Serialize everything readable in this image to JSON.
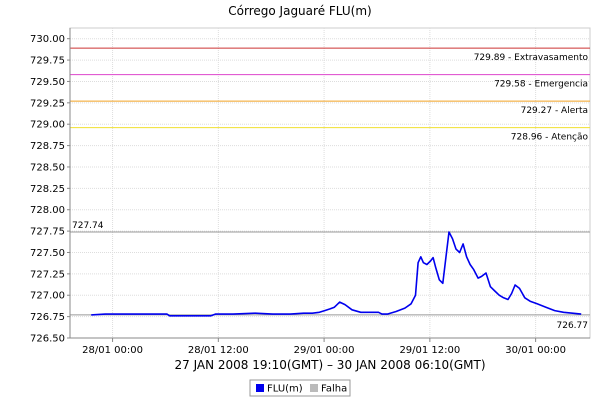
{
  "chart_data": {
    "type": "line",
    "title": "Córrego Jaguaré FLU(m)",
    "xlabel": "27 JAN 2008 19:10(GMT) – 30 JAN 2008 06:10(GMT)",
    "ylabel": "",
    "x_unit": "hours since 27/01 19:10",
    "xlim": [
      0,
      59
    ],
    "ylim": [
      726.5,
      730.125
    ],
    "y_ticks": [
      726.5,
      726.75,
      727.0,
      727.25,
      727.5,
      727.75,
      728.0,
      728.25,
      728.5,
      728.75,
      729.0,
      729.25,
      729.5,
      729.75,
      730.0
    ],
    "y_tick_labels": [
      "726.50",
      "726.75",
      "727.00",
      "727.25",
      "727.50",
      "727.75",
      "728.00",
      "728.25",
      "728.50",
      "728.75",
      "729.00",
      "729.25",
      "729.50",
      "729.75",
      "730.00"
    ],
    "x_ticks": [
      {
        "label": "28/01 00:00",
        "x": 4.83
      },
      {
        "label": "28/01 12:00",
        "x": 16.83
      },
      {
        "label": "29/01 00:00",
        "x": 28.83
      },
      {
        "label": "29/01 12:00",
        "x": 40.83
      },
      {
        "label": "30/01 00:00",
        "x": 52.83
      }
    ],
    "grid": true,
    "legend_position": "bottom",
    "legend": [
      {
        "name": "FLU(m)",
        "color": "#0000ee"
      },
      {
        "name": "Falha",
        "color": "#bbbbbb"
      }
    ],
    "thresholds": [
      {
        "value": 729.89,
        "label": "729.89 - Extravasamento",
        "color": "#cc3333"
      },
      {
        "value": 729.58,
        "label": "729.58 - Emergencia",
        "color": "#dd44cc"
      },
      {
        "value": 729.27,
        "label": "729.27 - Alerta",
        "color": "#f0a020"
      },
      {
        "value": 728.96,
        "label": "728.96 - Atenção",
        "color": "#f0e030"
      }
    ],
    "markers": [
      {
        "value": 727.74,
        "label": "727.74",
        "color": "#999999",
        "label_side": "left"
      },
      {
        "value": 726.77,
        "label": "726.77",
        "color": "#999999",
        "label_side": "right"
      }
    ],
    "series": [
      {
        "name": "FLU(m)",
        "color": "#0000ee",
        "x": [
          2.4,
          4,
          6,
          8,
          10,
          11,
          11.3,
          14,
          16,
          16.5,
          18.5,
          21,
          23,
          25,
          26.5,
          27.5,
          28.3,
          28.9,
          29.5,
          30,
          30.6,
          31.2,
          32,
          33,
          34,
          35,
          35.4,
          36,
          37,
          38,
          38.7,
          39.2,
          39.5,
          39.8,
          40.1,
          40.5,
          40.9,
          41.2,
          41.5,
          41.9,
          42.3,
          42.7,
          43.0,
          43.4,
          43.8,
          44.2,
          44.6,
          45.0,
          45.4,
          45.8,
          46.3,
          46.7,
          47.2,
          47.7,
          48.2,
          48.7,
          49.2,
          49.7,
          50.1,
          50.5,
          51,
          51.6,
          52.2,
          53,
          54,
          55,
          56,
          57,
          58
        ],
        "y": [
          726.77,
          726.78,
          726.78,
          726.78,
          726.78,
          726.78,
          726.76,
          726.76,
          726.76,
          726.78,
          726.78,
          726.79,
          726.78,
          726.78,
          726.79,
          726.79,
          726.8,
          726.82,
          726.84,
          726.86,
          726.92,
          726.89,
          726.83,
          726.8,
          726.8,
          726.8,
          726.78,
          726.78,
          726.81,
          726.85,
          726.9,
          727.0,
          727.38,
          727.45,
          727.38,
          727.36,
          727.4,
          727.44,
          727.32,
          727.18,
          727.14,
          727.48,
          727.74,
          727.66,
          727.54,
          727.5,
          727.6,
          727.45,
          727.36,
          727.3,
          727.2,
          727.22,
          727.26,
          727.1,
          727.05,
          727.0,
          726.97,
          726.95,
          727.02,
          727.12,
          727.08,
          726.97,
          726.93,
          726.9,
          726.86,
          726.82,
          726.8,
          726.79,
          726.78
        ]
      }
    ]
  }
}
